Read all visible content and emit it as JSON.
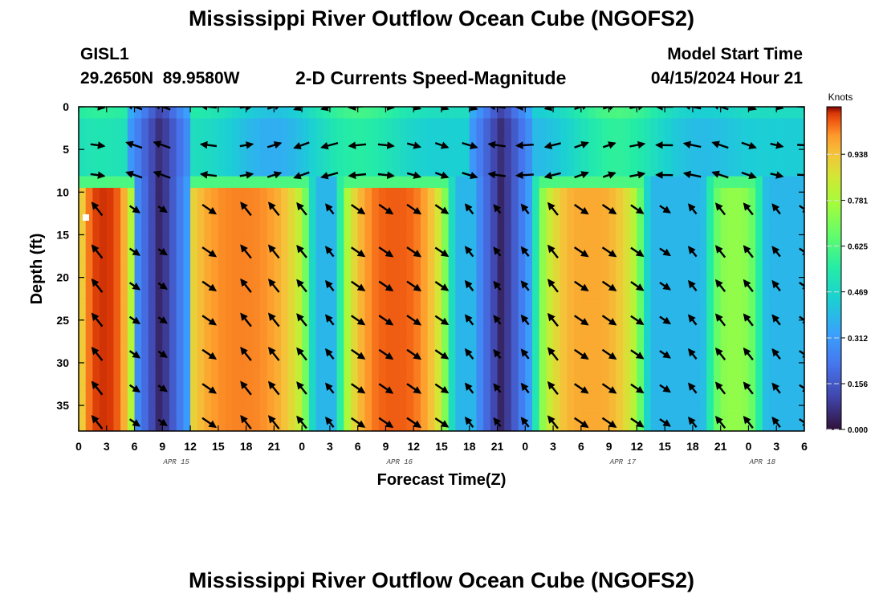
{
  "page": {
    "title": "Mississippi River Outflow Ocean Cube (NGOFS2)",
    "title_repeat": "Mississippi River Outflow Ocean Cube (NGOFS2)",
    "station": "GISL1",
    "coords": "29.2650N  89.9580W",
    "plot_subtitle": "2-D Currents Speed-Magnitude",
    "model_start_label": "Model Start Time",
    "model_start_value": "04/15/2024 Hour 21"
  },
  "chart_data": {
    "type": "heatmap",
    "title": "2-D Currents Speed-Magnitude",
    "xlabel": "Forecast Time(Z)",
    "ylabel": "Depth (ft)",
    "colorbar_unit": "Knots",
    "x_range_hours": [
      0,
      78
    ],
    "ylim": [
      0,
      38
    ],
    "x_tick_labels": [
      "0",
      "3",
      "6",
      "9",
      "12",
      "15",
      "18",
      "21",
      "0",
      "3",
      "6",
      "9",
      "12",
      "15",
      "18",
      "21",
      "0",
      "3",
      "6",
      "9",
      "12",
      "15",
      "18",
      "21",
      "0",
      "3",
      "6"
    ],
    "y_ticks": [
      0,
      5,
      10,
      15,
      20,
      25,
      30,
      35
    ],
    "date_labels": [
      {
        "text": "APR 15",
        "hour": 10.5
      },
      {
        "text": "APR 16",
        "hour": 34.5
      },
      {
        "text": "APR 17",
        "hour": 58.5
      },
      {
        "text": "APR 18",
        "hour": 73.5
      }
    ],
    "colorbar_ticks": [
      "0.000",
      "0.156",
      "0.312",
      "0.469",
      "0.625",
      "0.781",
      "0.938"
    ],
    "colorbar_range": [
      0.0,
      1.1
    ],
    "lower_layer_bands": [
      {
        "hour_start": 0,
        "hour_end": 5.5,
        "peak_knots": 1.08
      },
      {
        "hour_start": 11,
        "hour_end": 24,
        "peak_knots": 1.02
      },
      {
        "hour_start": 29,
        "hour_end": 39,
        "peak_knots": 1.05
      },
      {
        "hour_start": 50,
        "hour_end": 60,
        "peak_knots": 0.98
      },
      {
        "hour_start": 68,
        "hour_end": 73,
        "peak_knots": 0.74
      }
    ],
    "slack_minima_hours": [
      8.8,
      45.5
    ],
    "surface_layer_ft": [
      0,
      8
    ],
    "arrow_rows_ft": [
      0,
      4.5,
      8,
      12,
      17,
      21,
      25,
      29,
      33,
      37
    ],
    "arrow_columns_hours": [
      2,
      6,
      9,
      14,
      18,
      21,
      24,
      27,
      30,
      33,
      36,
      39,
      42,
      45,
      48,
      51,
      54,
      57,
      60,
      63,
      66,
      69,
      72,
      75,
      78
    ]
  }
}
